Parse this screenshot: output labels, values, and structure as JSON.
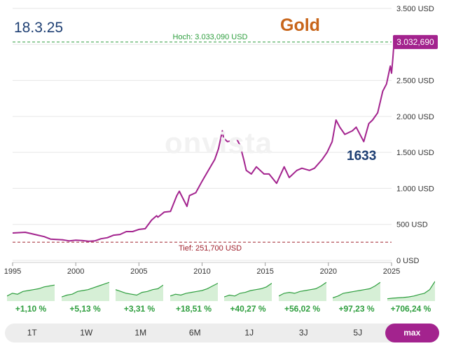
{
  "header": {
    "date": "18.3.25",
    "title": "Gold",
    "annotation": "1633",
    "watermark": "onvista"
  },
  "colors": {
    "line": "#a3238e",
    "high": "#2e9e3e",
    "low": "#a0222e",
    "perf": "#2e9e3e",
    "accent": "#a3238e"
  },
  "chart_data": {
    "type": "line",
    "title": "Gold",
    "x_range": [
      1995,
      2025
    ],
    "ylim": [
      0,
      3500
    ],
    "grid": true,
    "y_ticks": [
      {
        "value": 0,
        "label": "0 USD"
      },
      {
        "value": 500,
        "label": "500 USD"
      },
      {
        "value": 1000,
        "label": "1.000 USD"
      },
      {
        "value": 1500,
        "label": "1.500 USD"
      },
      {
        "value": 2000,
        "label": "2.000 USD"
      },
      {
        "value": 2500,
        "label": "2.500 USD"
      },
      {
        "value": 3000,
        "label": "3.000 USD"
      },
      {
        "value": 3500,
        "label": "3.500 USD"
      }
    ],
    "x_ticks": [
      {
        "value": 1995,
        "label": "1995"
      },
      {
        "value": 2000,
        "label": "2000"
      },
      {
        "value": 2005,
        "label": "2005"
      },
      {
        "value": 2010,
        "label": "2010"
      },
      {
        "value": 2015,
        "label": "2015"
      },
      {
        "value": 2020,
        "label": "2020"
      },
      {
        "value": 2025,
        "label": "2025"
      }
    ],
    "high": {
      "value": 3033.09,
      "label": "Hoch: 3.033,090 USD"
    },
    "low": {
      "value": 251.7,
      "label": "Tief: 251,700 USD"
    },
    "last": {
      "value": 3032.69,
      "label": "3.032,690"
    },
    "series": [
      {
        "x": [
          1995.0,
          1996.0,
          1996.5,
          1997.0,
          1997.5,
          1998.0,
          1998.5,
          1999.0,
          1999.5,
          2000.0,
          2000.5,
          2001.0,
          2001.5,
          2002.0,
          2002.5,
          2003.0,
          2003.5,
          2004.0,
          2004.5,
          2005.0,
          2005.5,
          2006.0,
          2006.4,
          2006.5,
          2007.0,
          2007.5,
          2008.0,
          2008.2,
          2008.8,
          2009.0,
          2009.5,
          2010.0,
          2010.5,
          2011.0,
          2011.3,
          2011.6,
          2011.7,
          2012.0,
          2012.3,
          2012.7,
          2013.0,
          2013.3,
          2013.5,
          2013.9,
          2014.3,
          2014.9,
          2015.3,
          2015.9,
          2016.5,
          2016.9,
          2017.5,
          2017.9,
          2018.5,
          2018.9,
          2019.5,
          2019.9,
          2020.3,
          2020.6,
          2020.9,
          2021.3,
          2021.9,
          2022.2,
          2022.8,
          2023.2,
          2023.5,
          2023.9,
          2024.3,
          2024.6,
          2024.9,
          2025.0,
          2025.1,
          2025.2
        ],
        "y": [
          380,
          390,
          370,
          350,
          330,
          295,
          290,
          285,
          270,
          280,
          275,
          265,
          270,
          300,
          315,
          350,
          360,
          400,
          400,
          430,
          440,
          560,
          620,
          600,
          670,
          680,
          900,
          960,
          750,
          900,
          940,
          1100,
          1250,
          1400,
          1550,
          1800,
          1700,
          1650,
          1660,
          1700,
          1600,
          1400,
          1250,
          1200,
          1300,
          1200,
          1200,
          1070,
          1300,
          1150,
          1250,
          1280,
          1250,
          1280,
          1400,
          1500,
          1650,
          1950,
          1850,
          1750,
          1800,
          1850,
          1650,
          1900,
          1950,
          2050,
          2350,
          2450,
          2700,
          2600,
          2800,
          3032.69
        ]
      }
    ]
  },
  "performance": [
    {
      "label": "1T",
      "value": "+1,10 %"
    },
    {
      "label": "1W",
      "value": "+5,13 %"
    },
    {
      "label": "1M",
      "value": "+3,31 %"
    },
    {
      "label": "6M",
      "value": "+18,51 %"
    },
    {
      "label": "1J",
      "value": "+40,27 %"
    },
    {
      "label": "3J",
      "value": "+56,02 %"
    },
    {
      "label": "5J",
      "value": "+97,23 %"
    },
    {
      "label": "max",
      "value": "+706,24 %"
    }
  ],
  "tabs": [
    "1T",
    "1W",
    "1M",
    "6M",
    "1J",
    "3J",
    "5J",
    "max"
  ],
  "active_tab": "max"
}
